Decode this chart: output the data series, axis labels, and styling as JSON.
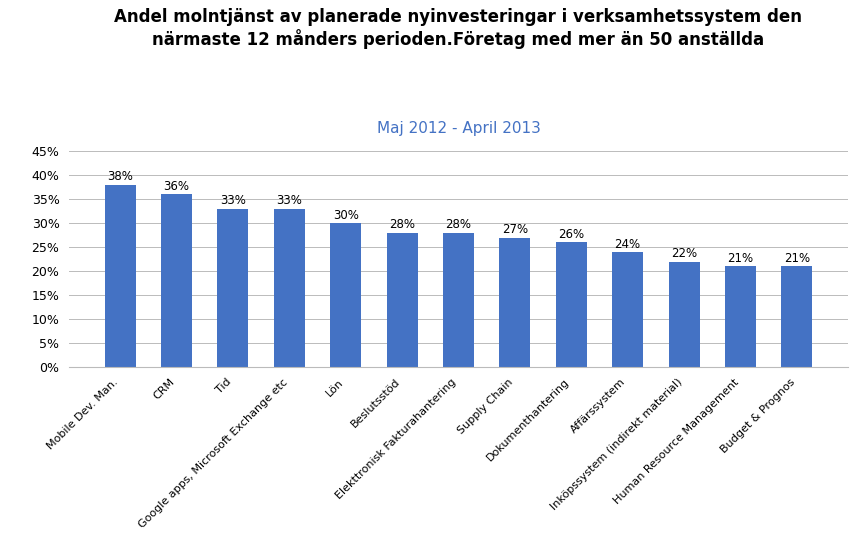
{
  "title_line1": "Andel molntjänst av planerade nyinvesteringar i verksamhetssystem den",
  "title_line2": "närmaste 12 månders perioden.Företag med mer än 50 anställda",
  "subtitle": "Maj 2012 - April 2013",
  "categories": [
    "Mobile Dev. Man.",
    "CRM",
    "Tid",
    "Google apps, Microsoft Exchange etc",
    "Lön",
    "Beslutsstöd",
    "Elekttronisk Fakturahantering",
    "Supply Chain",
    "Dokumenthantering",
    "Affärssystem",
    "Inköpssystem (indirekt material)",
    "Human Resource Management",
    "Budget & Prognos"
  ],
  "values": [
    0.38,
    0.36,
    0.33,
    0.33,
    0.3,
    0.28,
    0.28,
    0.27,
    0.26,
    0.24,
    0.22,
    0.21,
    0.21
  ],
  "labels": [
    "38%",
    "36%",
    "33%",
    "33%",
    "30%",
    "28%",
    "28%",
    "27%",
    "26%",
    "24%",
    "22%",
    "21%",
    "21%"
  ],
  "bar_color": "#4472C4",
  "ylim": [
    0,
    0.45
  ],
  "yticks": [
    0.0,
    0.05,
    0.1,
    0.15,
    0.2,
    0.25,
    0.3,
    0.35,
    0.4,
    0.45
  ],
  "ytick_labels": [
    "0%",
    "5%",
    "10%",
    "15%",
    "20%",
    "25%",
    "30%",
    "35%",
    "40%",
    "45%"
  ],
  "background_color": "#FFFFFF",
  "title_color": "#000000",
  "subtitle_color": "#4472C4",
  "title_fontsize": 12,
  "subtitle_fontsize": 11,
  "label_fontsize": 8.5,
  "tick_fontsize": 9,
  "xtick_fontsize": 8,
  "bar_width": 0.55,
  "xtick_rotation": 45
}
